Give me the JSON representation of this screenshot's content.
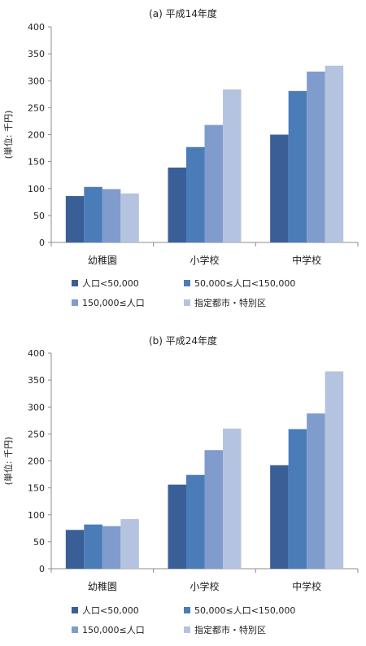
{
  "series_colors": [
    "#3a5f96",
    "#4a7cb8",
    "#7f9ccc",
    "#b4c3df"
  ],
  "chart_data": [
    {
      "type": "bar",
      "title": "(a) 平成14年度",
      "ylabel": "(単位: 千円)",
      "xlabel": "",
      "ylim": [
        0,
        400
      ],
      "yticks": [
        0,
        50,
        100,
        150,
        200,
        250,
        300,
        350,
        400
      ],
      "grid": false,
      "legend_position": "bottom",
      "categories": [
        "幼稚園",
        "小学校",
        "中学校"
      ],
      "series": [
        {
          "name": "人口<50,000",
          "values": [
            86,
            139,
            200
          ]
        },
        {
          "name": "50,000≤人口<150,000",
          "values": [
            103,
            177,
            281
          ]
        },
        {
          "name": "150,000≤人口",
          "values": [
            99,
            218,
            317
          ]
        },
        {
          "name": "指定都市・特別区",
          "values": [
            91,
            284,
            328
          ]
        }
      ]
    },
    {
      "type": "bar",
      "title": "(b) 平成24年度",
      "ylabel": "(単位: 千円)",
      "xlabel": "",
      "ylim": [
        0,
        400
      ],
      "yticks": [
        0,
        50,
        100,
        150,
        200,
        250,
        300,
        350,
        400
      ],
      "grid": false,
      "legend_position": "bottom",
      "categories": [
        "幼稚園",
        "小学校",
        "中学校"
      ],
      "series": [
        {
          "name": "人口<50,000",
          "values": [
            72,
            156,
            192
          ]
        },
        {
          "name": "50,000≤人口<150,000",
          "values": [
            82,
            174,
            259
          ]
        },
        {
          "name": "150,000≤人口",
          "values": [
            79,
            220,
            288
          ]
        },
        {
          "name": "指定都市・特別区",
          "values": [
            92,
            260,
            366
          ]
        }
      ]
    }
  ]
}
